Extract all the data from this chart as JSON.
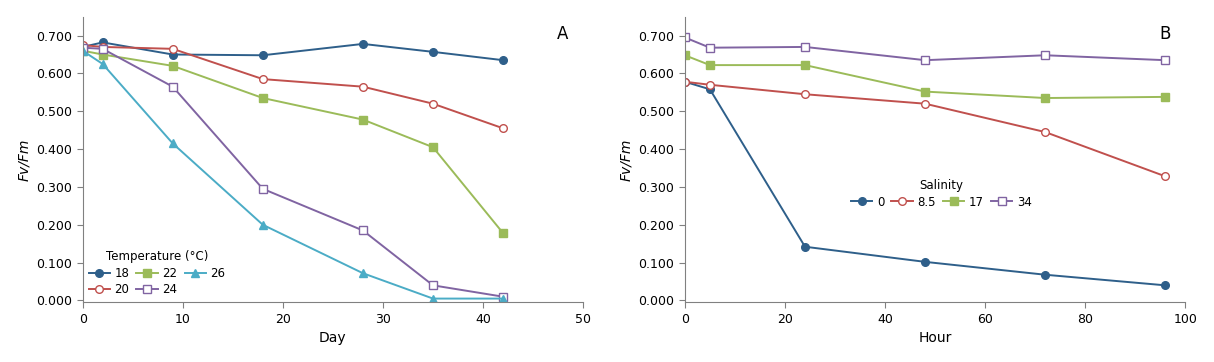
{
  "chart_A": {
    "title_label": "A",
    "xlabel": "Day",
    "ylabel": "Fv/Fm",
    "xlim": [
      0,
      50
    ],
    "ylim": [
      -0.005,
      0.75
    ],
    "yticks": [
      0.0,
      0.1,
      0.2,
      0.3,
      0.4,
      0.5,
      0.6,
      0.7
    ],
    "xticks": [
      0,
      10,
      20,
      30,
      40,
      50
    ],
    "legend_title": "Temperature (°C)",
    "series": [
      {
        "label": "18",
        "x": [
          0,
          2,
          9,
          18,
          28,
          35,
          42
        ],
        "y": [
          0.67,
          0.682,
          0.65,
          0.648,
          0.678,
          0.657,
          0.635
        ],
        "color": "#2e5f8a",
        "marker": "o",
        "marker_fill": "#2e5f8a",
        "linestyle": "-"
      },
      {
        "label": "20",
        "x": [
          0,
          2,
          9,
          18,
          28,
          35,
          42
        ],
        "y": [
          0.675,
          0.67,
          0.665,
          0.585,
          0.565,
          0.52,
          0.455
        ],
        "color": "#c0504d",
        "marker": "o",
        "marker_fill": "white",
        "linestyle": "-"
      },
      {
        "label": "22",
        "x": [
          0,
          2,
          9,
          18,
          28,
          35,
          42
        ],
        "y": [
          0.66,
          0.65,
          0.62,
          0.535,
          0.478,
          0.405,
          0.178
        ],
        "color": "#9bbb59",
        "marker": "s",
        "marker_fill": "#9bbb59",
        "linestyle": "-"
      },
      {
        "label": "24",
        "x": [
          0,
          2,
          9,
          18,
          28,
          35,
          42
        ],
        "y": [
          0.668,
          0.665,
          0.565,
          0.295,
          0.185,
          0.04,
          0.01
        ],
        "color": "#8064a2",
        "marker": "s",
        "marker_fill": "white",
        "linestyle": "-"
      },
      {
        "label": "26",
        "x": [
          0,
          2,
          9,
          18,
          28,
          35,
          42
        ],
        "y": [
          0.66,
          0.625,
          0.415,
          0.2,
          0.072,
          0.005,
          0.005
        ],
        "color": "#4bacc6",
        "marker": "^",
        "marker_fill": "#4bacc6",
        "linestyle": "-"
      }
    ]
  },
  "chart_B": {
    "title_label": "B",
    "xlabel": "Hour",
    "ylabel": "Fv/Fm",
    "xlim": [
      0,
      100
    ],
    "ylim": [
      -0.005,
      0.75
    ],
    "yticks": [
      0.0,
      0.1,
      0.2,
      0.3,
      0.4,
      0.5,
      0.6,
      0.7
    ],
    "xticks": [
      0,
      20,
      40,
      60,
      80,
      100
    ],
    "legend_title": "Salinity",
    "series": [
      {
        "label": "0",
        "x": [
          0,
          5,
          24,
          48,
          72,
          96
        ],
        "y": [
          0.578,
          0.558,
          0.142,
          0.102,
          0.068,
          0.04
        ],
        "color": "#2e5f8a",
        "marker": "o",
        "marker_fill": "#2e5f8a",
        "linestyle": "-"
      },
      {
        "label": "8.5",
        "x": [
          0,
          5,
          24,
          48,
          72,
          96
        ],
        "y": [
          0.578,
          0.57,
          0.545,
          0.52,
          0.445,
          0.328
        ],
        "color": "#c0504d",
        "marker": "o",
        "marker_fill": "white",
        "linestyle": "-"
      },
      {
        "label": "17",
        "x": [
          0,
          5,
          24,
          48,
          72,
          96
        ],
        "y": [
          0.648,
          0.622,
          0.622,
          0.552,
          0.535,
          0.538
        ],
        "color": "#9bbb59",
        "marker": "s",
        "marker_fill": "#9bbb59",
        "linestyle": "-"
      },
      {
        "label": "34",
        "x": [
          0,
          5,
          24,
          48,
          72,
          96
        ],
        "y": [
          0.695,
          0.668,
          0.67,
          0.635,
          0.648,
          0.635
        ],
        "color": "#8064a2",
        "marker": "s",
        "marker_fill": "white",
        "linestyle": "-"
      }
    ]
  }
}
